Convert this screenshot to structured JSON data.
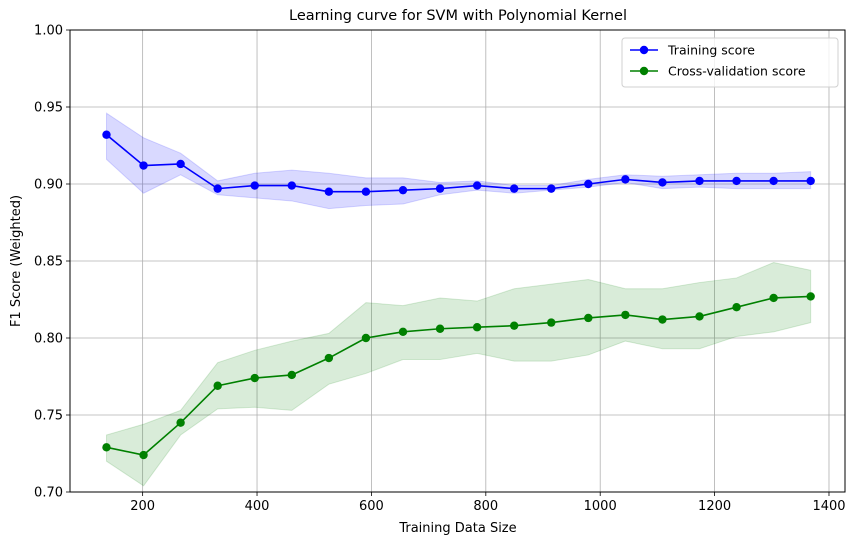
{
  "chart_data": {
    "type": "line",
    "title": "Learning curve for SVM with Polynomial Kernel",
    "xlabel": "Training Data Size",
    "ylabel": "F1 Score (Weighted)",
    "xlim": [
      73,
      1428
    ],
    "ylim": [
      0.7,
      1.0
    ],
    "xticks": [
      200,
      400,
      600,
      800,
      1000,
      1200,
      1400
    ],
    "xtick_labels": [
      "200",
      "400",
      "600",
      "800",
      "1000",
      "1200",
      "1400"
    ],
    "yticks": [
      0.7,
      0.75,
      0.8,
      0.85,
      0.9,
      0.95,
      1.0
    ],
    "ytick_labels": [
      "0.70",
      "0.75",
      "0.80",
      "0.85",
      "0.90",
      "0.95",
      "1.00"
    ],
    "grid": true,
    "legend_position": "top-right",
    "x": [
      136.8,
      201.6,
      266.4,
      331.2,
      396.0,
      460.8,
      525.6,
      590.4,
      655.2,
      720.0,
      784.8,
      849.6,
      914.4,
      979.2,
      1044.0,
      1108.8,
      1173.6,
      1238.4,
      1303.2,
      1368.0
    ],
    "series": [
      {
        "name": "Training score",
        "color": "#0000ff",
        "band_color": "#0000ff",
        "values": [
          0.932,
          0.912,
          0.913,
          0.897,
          0.899,
          0.899,
          0.895,
          0.895,
          0.896,
          0.897,
          0.899,
          0.897,
          0.897,
          0.9,
          0.903,
          0.901,
          0.902,
          0.902,
          0.902,
          0.902
        ],
        "upper": [
          0.946,
          0.93,
          0.92,
          0.902,
          0.907,
          0.909,
          0.907,
          0.904,
          0.904,
          0.901,
          0.902,
          0.899,
          0.899,
          0.903,
          0.906,
          0.905,
          0.906,
          0.907,
          0.907,
          0.908
        ],
        "lower": [
          0.916,
          0.894,
          0.906,
          0.893,
          0.891,
          0.889,
          0.884,
          0.886,
          0.887,
          0.893,
          0.896,
          0.894,
          0.896,
          0.898,
          0.901,
          0.897,
          0.898,
          0.897,
          0.897,
          0.897
        ]
      },
      {
        "name": "Cross-validation score",
        "color": "#008000",
        "band_color": "#008000",
        "values": [
          0.729,
          0.724,
          0.745,
          0.769,
          0.774,
          0.776,
          0.787,
          0.8,
          0.804,
          0.806,
          0.807,
          0.808,
          0.81,
          0.813,
          0.815,
          0.812,
          0.814,
          0.82,
          0.826,
          0.827
        ],
        "upper": [
          0.737,
          0.744,
          0.753,
          0.784,
          0.792,
          0.798,
          0.803,
          0.823,
          0.821,
          0.826,
          0.824,
          0.832,
          0.835,
          0.838,
          0.832,
          0.832,
          0.836,
          0.839,
          0.849,
          0.844
        ],
        "lower": [
          0.72,
          0.704,
          0.737,
          0.754,
          0.755,
          0.753,
          0.77,
          0.777,
          0.786,
          0.786,
          0.79,
          0.785,
          0.785,
          0.789,
          0.798,
          0.793,
          0.793,
          0.801,
          0.804,
          0.81
        ]
      }
    ]
  }
}
